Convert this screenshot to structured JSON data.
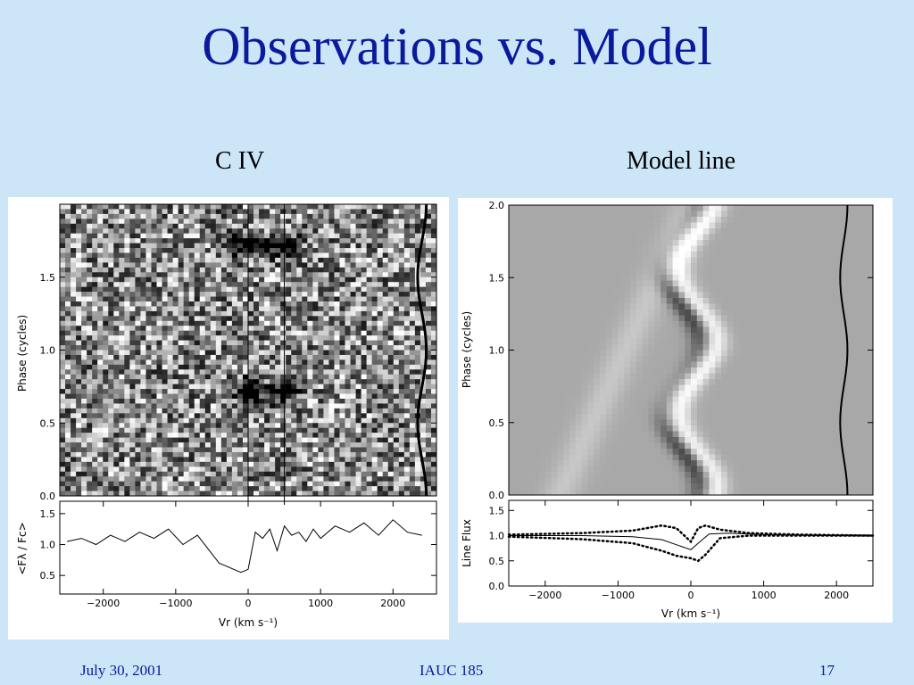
{
  "slide": {
    "title": "Observations vs. Model",
    "left_heading": "C IV",
    "right_heading": "Model line",
    "footer_date": "July 30, 2001",
    "footer_event": "IAUC 185",
    "page_number": "17"
  },
  "colors": {
    "background": "#cce6f8",
    "title": "#0a1a9c"
  },
  "chart_data": [
    {
      "type": "heatmap",
      "name": "observed C IV dynamic spectrum",
      "ylabel": "Phase (cycles)",
      "xlim": [
        -2600,
        2600
      ],
      "ylim": [
        0,
        2
      ],
      "yticks": [
        "0.0",
        "0.5",
        "1.0",
        "1.5"
      ],
      "ytick_values": [
        0,
        0.5,
        1.0,
        1.5
      ],
      "vertical_lines": [
        0,
        500
      ],
      "lower_panel": {
        "type": "line",
        "ylabel": "<Fλ / Fc>",
        "xlabel": "Vr (km s⁻¹)",
        "ylim": [
          0.2,
          1.7
        ],
        "yticks": [
          "0.5",
          "1.0",
          "1.5"
        ],
        "ytick_values": [
          0.5,
          1.0,
          1.5
        ],
        "xticks": [
          "−2000",
          "−1000",
          "0",
          "1000",
          "2000"
        ],
        "xtick_values": [
          -2000,
          -1000,
          0,
          1000,
          2000
        ],
        "x": [
          -2500,
          -2300,
          -2100,
          -1900,
          -1700,
          -1500,
          -1300,
          -1100,
          -900,
          -700,
          -500,
          -400,
          -300,
          -200,
          -100,
          0,
          100,
          200,
          300,
          400,
          500,
          600,
          700,
          800,
          900,
          1000,
          1200,
          1400,
          1600,
          1800,
          2000,
          2200,
          2400
        ],
        "y": [
          1.05,
          1.1,
          1.0,
          1.15,
          1.05,
          1.2,
          1.1,
          1.25,
          1.0,
          1.15,
          0.85,
          0.7,
          0.65,
          0.6,
          0.55,
          0.6,
          1.2,
          1.1,
          1.25,
          0.9,
          1.3,
          1.15,
          1.2,
          1.05,
          1.25,
          1.1,
          1.3,
          1.2,
          1.35,
          1.15,
          1.4,
          1.2,
          1.15
        ]
      }
    },
    {
      "type": "heatmap",
      "name": "model line dynamic spectrum",
      "ylabel": "Phase (cycles)",
      "xlim": [
        -2500,
        2500
      ],
      "ylim": [
        0,
        2
      ],
      "yticks": [
        "0.0",
        "0.5",
        "1.0",
        "1.5",
        "2.0"
      ],
      "ytick_values": [
        0,
        0.5,
        1.0,
        1.5,
        2.0
      ],
      "lower_panel": {
        "type": "line",
        "ylabel": "Line Flux",
        "xlabel": "Vr (km s⁻¹)",
        "ylim": [
          0.0,
          1.7
        ],
        "yticks": [
          "0.0",
          "0.5",
          "1.0",
          "1.5"
        ],
        "ytick_values": [
          0.0,
          0.5,
          1.0,
          1.5
        ],
        "xticks": [
          "−2000",
          "−1000",
          "0",
          "1000",
          "2000"
        ],
        "xtick_values": [
          -2000,
          -1000,
          0,
          1000,
          2000
        ],
        "series": [
          {
            "style": "solid",
            "x": [
              -2500,
              -1500,
              -800,
              -400,
              -200,
              0,
              100,
              250,
              500,
              1000,
              2000,
              2500
            ],
            "y": [
              1.0,
              1.0,
              0.98,
              0.92,
              0.82,
              0.72,
              0.85,
              1.03,
              1.05,
              1.02,
              1.0,
              1.0
            ]
          },
          {
            "style": "dotted",
            "x": [
              -2500,
              -1500,
              -800,
              -400,
              -200,
              0,
              100,
              200,
              400,
              800,
              1500,
              2500
            ],
            "y": [
              1.02,
              1.05,
              1.1,
              1.2,
              1.15,
              0.88,
              1.15,
              1.2,
              1.12,
              1.05,
              1.02,
              1.0
            ]
          },
          {
            "style": "dotted",
            "x": [
              -2500,
              -1500,
              -800,
              -400,
              -200,
              0,
              100,
              200,
              400,
              800,
              1500,
              2500
            ],
            "y": [
              0.98,
              0.93,
              0.85,
              0.7,
              0.6,
              0.55,
              0.5,
              0.62,
              0.95,
              1.0,
              1.0,
              1.0
            ]
          }
        ]
      }
    }
  ]
}
